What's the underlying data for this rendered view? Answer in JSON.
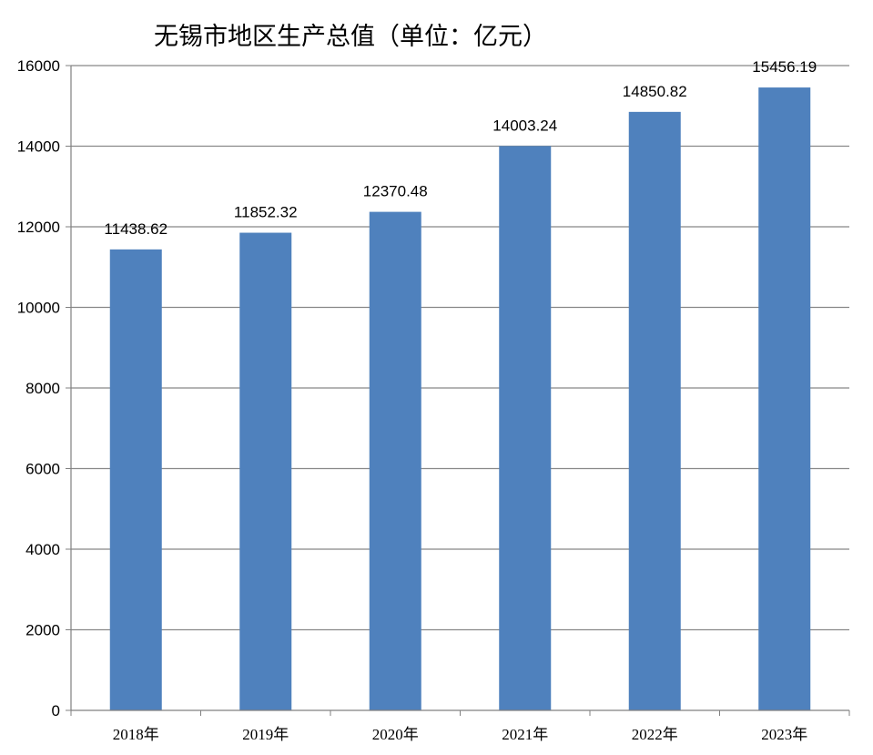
{
  "chart_data": {
    "type": "bar",
    "title": "无锡市地区生产总值（单位：亿元）",
    "xlabel": "",
    "ylabel": "",
    "categories": [
      "2018年",
      "2019年",
      "2020年",
      "2021年",
      "2022年",
      "2023年"
    ],
    "series": [
      {
        "values": [
          11438.62,
          11852.32,
          12370.48,
          14003.24,
          14850.82,
          15456.19
        ],
        "data_labels": [
          "11438.62",
          "11852.32",
          "12370.48",
          "14003.24",
          "14850.82",
          "15456.19"
        ]
      }
    ],
    "ylim": [
      0,
      16000
    ],
    "yticks": [
      "0",
      "2000",
      "4000",
      "6000",
      "8000",
      "10000",
      "12000",
      "14000",
      "16000"
    ],
    "grid": true,
    "legend": "none",
    "colors": {
      "bar": "#4f81bd",
      "gridline": "#888888",
      "axis": "#808080"
    }
  }
}
